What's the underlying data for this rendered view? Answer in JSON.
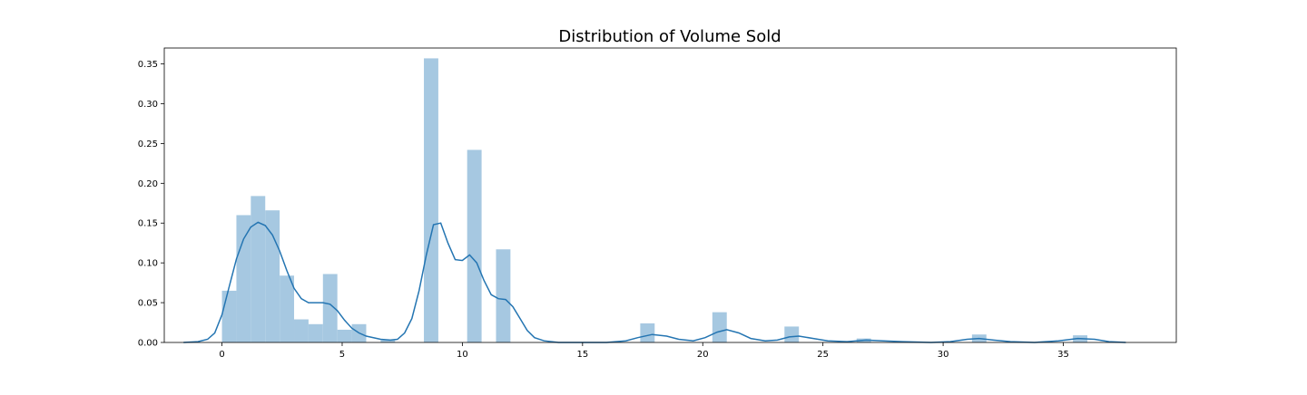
{
  "chart_data": {
    "type": "histogram",
    "title": "Distribution of Volume Sold",
    "xlabel": "",
    "ylabel": "",
    "xlim": [
      -2.4,
      39.7
    ],
    "ylim": [
      0,
      0.37
    ],
    "xticks": [
      0,
      5,
      10,
      15,
      20,
      25,
      30,
      35
    ],
    "yticks": [
      0.0,
      0.05,
      0.1,
      0.15,
      0.2,
      0.25,
      0.3,
      0.35
    ],
    "bin_width": 0.6,
    "bars": [
      {
        "x": 0.0,
        "value": 0.065
      },
      {
        "x": 0.6,
        "value": 0.16
      },
      {
        "x": 1.2,
        "value": 0.184
      },
      {
        "x": 1.8,
        "value": 0.166
      },
      {
        "x": 2.4,
        "value": 0.084
      },
      {
        "x": 3.0,
        "value": 0.029
      },
      {
        "x": 3.6,
        "value": 0.023
      },
      {
        "x": 4.2,
        "value": 0.086
      },
      {
        "x": 4.8,
        "value": 0.016
      },
      {
        "x": 5.4,
        "value": 0.023
      },
      {
        "x": 6.6,
        "value": 0.003
      },
      {
        "x": 8.4,
        "value": 0.357
      },
      {
        "x": 10.2,
        "value": 0.242
      },
      {
        "x": 11.4,
        "value": 0.117
      },
      {
        "x": 17.4,
        "value": 0.024
      },
      {
        "x": 20.4,
        "value": 0.038
      },
      {
        "x": 23.4,
        "value": 0.02
      },
      {
        "x": 26.4,
        "value": 0.005
      },
      {
        "x": 31.2,
        "value": 0.01
      },
      {
        "x": 35.4,
        "value": 0.009
      }
    ],
    "kde": [
      [
        -1.6,
        0.0
      ],
      [
        -1.0,
        0.001
      ],
      [
        -0.6,
        0.004
      ],
      [
        -0.3,
        0.012
      ],
      [
        0.0,
        0.035
      ],
      [
        0.3,
        0.07
      ],
      [
        0.6,
        0.105
      ],
      [
        0.9,
        0.13
      ],
      [
        1.2,
        0.145
      ],
      [
        1.5,
        0.151
      ],
      [
        1.8,
        0.147
      ],
      [
        2.1,
        0.135
      ],
      [
        2.4,
        0.115
      ],
      [
        2.7,
        0.09
      ],
      [
        3.0,
        0.068
      ],
      [
        3.3,
        0.055
      ],
      [
        3.6,
        0.05
      ],
      [
        3.9,
        0.05
      ],
      [
        4.2,
        0.05
      ],
      [
        4.5,
        0.048
      ],
      [
        4.8,
        0.04
      ],
      [
        5.1,
        0.028
      ],
      [
        5.4,
        0.018
      ],
      [
        5.7,
        0.012
      ],
      [
        6.0,
        0.008
      ],
      [
        6.6,
        0.004
      ],
      [
        7.0,
        0.003
      ],
      [
        7.3,
        0.004
      ],
      [
        7.6,
        0.012
      ],
      [
        7.9,
        0.03
      ],
      [
        8.2,
        0.065
      ],
      [
        8.5,
        0.11
      ],
      [
        8.8,
        0.148
      ],
      [
        9.1,
        0.15
      ],
      [
        9.4,
        0.125
      ],
      [
        9.7,
        0.104
      ],
      [
        10.0,
        0.103
      ],
      [
        10.3,
        0.11
      ],
      [
        10.6,
        0.1
      ],
      [
        10.9,
        0.078
      ],
      [
        11.2,
        0.06
      ],
      [
        11.5,
        0.055
      ],
      [
        11.8,
        0.054
      ],
      [
        12.1,
        0.045
      ],
      [
        12.4,
        0.03
      ],
      [
        12.7,
        0.015
      ],
      [
        13.0,
        0.006
      ],
      [
        13.4,
        0.002
      ],
      [
        14.0,
        0.0
      ],
      [
        15.0,
        0.0
      ],
      [
        16.0,
        0.0
      ],
      [
        16.8,
        0.002
      ],
      [
        17.3,
        0.006
      ],
      [
        17.9,
        0.01
      ],
      [
        18.5,
        0.008
      ],
      [
        19.0,
        0.004
      ],
      [
        19.6,
        0.002
      ],
      [
        20.1,
        0.006
      ],
      [
        20.6,
        0.013
      ],
      [
        21.0,
        0.016
      ],
      [
        21.5,
        0.012
      ],
      [
        22.0,
        0.005
      ],
      [
        22.6,
        0.002
      ],
      [
        23.1,
        0.003
      ],
      [
        23.6,
        0.007
      ],
      [
        24.0,
        0.008
      ],
      [
        24.6,
        0.005
      ],
      [
        25.2,
        0.002
      ],
      [
        26.0,
        0.001
      ],
      [
        26.8,
        0.003
      ],
      [
        27.5,
        0.002
      ],
      [
        28.3,
        0.001
      ],
      [
        29.5,
        0.0
      ],
      [
        30.3,
        0.001
      ],
      [
        31.0,
        0.004
      ],
      [
        31.5,
        0.005
      ],
      [
        32.1,
        0.003
      ],
      [
        32.8,
        0.001
      ],
      [
        33.8,
        0.0
      ],
      [
        34.8,
        0.002
      ],
      [
        35.6,
        0.005
      ],
      [
        36.3,
        0.004
      ],
      [
        36.9,
        0.001
      ],
      [
        37.6,
        0.0
      ]
    ],
    "colors": {
      "bar": "#a6c8e1",
      "kde": "#2475b2",
      "axis": "#000000"
    },
    "grid": false,
    "legend": "none"
  }
}
